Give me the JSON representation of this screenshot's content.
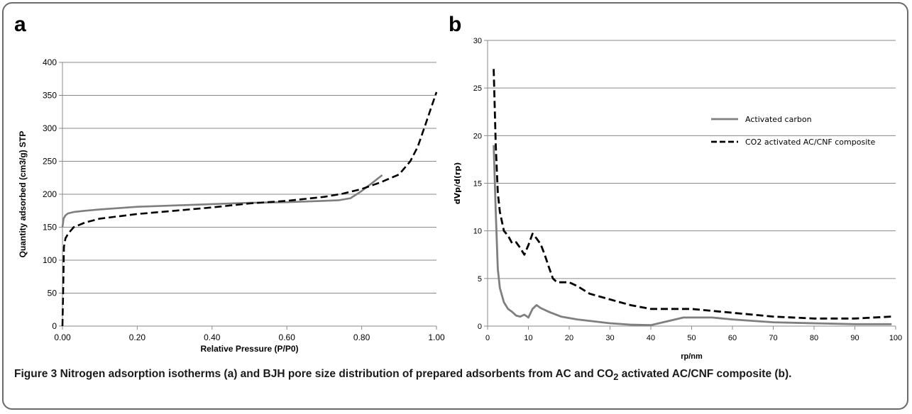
{
  "panels": {
    "a_letter": "a",
    "b_letter": "b"
  },
  "caption": {
    "label": "Figure 3",
    "text_before_sub": "Nitrogen adsorption isotherms (a) and BJH pore size distribution of prepared adsorbents from AC and CO",
    "subscript": "2",
    "text_after_sub": " activated AC/CNF composite (b)."
  },
  "colors": {
    "solid_series": "#7f7f7f",
    "dashed_series": "#000000",
    "grid": "#8a8a8a",
    "axis": "#8a8a8a"
  },
  "chart_data": [
    {
      "id": "a",
      "type": "line",
      "title": "",
      "xlabel": "Relative Pressure (P/P0)",
      "ylabel": "Quantity adsorbed (cm3/g) STP",
      "xlim": [
        0,
        1.0
      ],
      "ylim": [
        0,
        400
      ],
      "xticks": [
        0,
        0.2,
        0.4,
        0.6,
        0.8,
        1.0
      ],
      "xtick_labels": [
        "0.00",
        "0.20",
        "0.40",
        "0.60",
        "0.80",
        "1.00"
      ],
      "yticks": [
        0,
        50,
        100,
        150,
        200,
        250,
        300,
        350,
        400
      ],
      "ytick_labels": [
        "0",
        "50",
        "100",
        "150",
        "200",
        "250",
        "300",
        "350",
        "400"
      ],
      "grid": "horizontal",
      "legend": "none",
      "series": [
        {
          "style": "solid",
          "points": [
            [
              0.0,
              150
            ],
            [
              0.003,
              163
            ],
            [
              0.008,
              168
            ],
            [
              0.015,
              171
            ],
            [
              0.03,
              173
            ],
            [
              0.06,
              175
            ],
            [
              0.1,
              177
            ],
            [
              0.2,
              181
            ],
            [
              0.3,
              183
            ],
            [
              0.4,
              185
            ],
            [
              0.5,
              187
            ],
            [
              0.6,
              188
            ],
            [
              0.7,
              190
            ],
            [
              0.74,
              191
            ],
            [
              0.77,
              194
            ],
            [
              0.8,
              205
            ],
            [
              0.83,
              218
            ],
            [
              0.855,
              229
            ]
          ]
        },
        {
          "style": "dashed",
          "points": [
            [
              0.0,
              0
            ],
            [
              0.002,
              60
            ],
            [
              0.004,
              120
            ],
            [
              0.008,
              133
            ],
            [
              0.015,
              140
            ],
            [
              0.03,
              150
            ],
            [
              0.06,
              157
            ],
            [
              0.1,
              163
            ],
            [
              0.2,
              170
            ],
            [
              0.3,
              175
            ],
            [
              0.4,
              180
            ],
            [
              0.5,
              186
            ],
            [
              0.6,
              190
            ],
            [
              0.7,
              196
            ],
            [
              0.75,
              201
            ],
            [
              0.8,
              208
            ],
            [
              0.85,
              218
            ],
            [
              0.9,
              230
            ],
            [
              0.93,
              250
            ],
            [
              0.95,
              272
            ],
            [
              0.97,
              305
            ],
            [
              0.985,
              330
            ],
            [
              1.0,
              355
            ]
          ]
        }
      ]
    },
    {
      "id": "b",
      "type": "line",
      "title": "",
      "xlabel": "rp/nm",
      "ylabel": "dVp/d(rp)",
      "xlim": [
        0,
        100
      ],
      "ylim": [
        0,
        30
      ],
      "xticks": [
        0,
        10,
        20,
        30,
        40,
        50,
        60,
        70,
        80,
        90,
        100
      ],
      "xtick_labels": [
        "0",
        "10",
        "20",
        "30",
        "40",
        "50",
        "60",
        "70",
        "80",
        "90",
        "100"
      ],
      "yticks": [
        0,
        5,
        10,
        15,
        20,
        25,
        30
      ],
      "ytick_labels": [
        "0",
        "5",
        "10",
        "15",
        "20",
        "25",
        "30"
      ],
      "grid": "horizontal",
      "legend": "right",
      "series": [
        {
          "name": "Activated carbon",
          "style": "solid",
          "points": [
            [
              1.5,
              19
            ],
            [
              2,
              12
            ],
            [
              2.5,
              6
            ],
            [
              3,
              4
            ],
            [
              4,
              2.5
            ],
            [
              5,
              1.8
            ],
            [
              6,
              1.5
            ],
            [
              7,
              1.1
            ],
            [
              8,
              1.0
            ],
            [
              9,
              1.2
            ],
            [
              10,
              0.9
            ],
            [
              11,
              1.8
            ],
            [
              12,
              2.2
            ],
            [
              13,
              1.9
            ],
            [
              15,
              1.5
            ],
            [
              18,
              1.0
            ],
            [
              22,
              0.7
            ],
            [
              30,
              0.3
            ],
            [
              35,
              0.15
            ],
            [
              40,
              0.1
            ],
            [
              43,
              0.4
            ],
            [
              48,
              0.9
            ],
            [
              55,
              0.9
            ],
            [
              60,
              0.7
            ],
            [
              70,
              0.4
            ],
            [
              80,
              0.3
            ],
            [
              90,
              0.2
            ],
            [
              99,
              0.2
            ]
          ]
        },
        {
          "name": "CO2 activated AC/CNF composite",
          "style": "dashed",
          "points": [
            [
              1.5,
              27
            ],
            [
              2,
              19
            ],
            [
              2.5,
              14
            ],
            [
              3,
              12
            ],
            [
              4,
              10
            ],
            [
              5,
              9.5
            ],
            [
              6,
              8.7
            ],
            [
              7,
              8.8
            ],
            [
              8,
              8.2
            ],
            [
              9,
              7.5
            ],
            [
              10,
              8.5
            ],
            [
              11,
              9.7
            ],
            [
              12,
              9.2
            ],
            [
              13,
              8.6
            ],
            [
              14,
              7.5
            ],
            [
              15,
              6.2
            ],
            [
              16,
              5.0
            ],
            [
              17,
              4.6
            ],
            [
              20,
              4.6
            ],
            [
              22,
              4.2
            ],
            [
              25,
              3.4
            ],
            [
              30,
              2.8
            ],
            [
              35,
              2.2
            ],
            [
              40,
              1.8
            ],
            [
              50,
              1.8
            ],
            [
              60,
              1.4
            ],
            [
              70,
              1.0
            ],
            [
              80,
              0.8
            ],
            [
              90,
              0.8
            ],
            [
              99,
              1.0
            ]
          ]
        }
      ]
    }
  ]
}
